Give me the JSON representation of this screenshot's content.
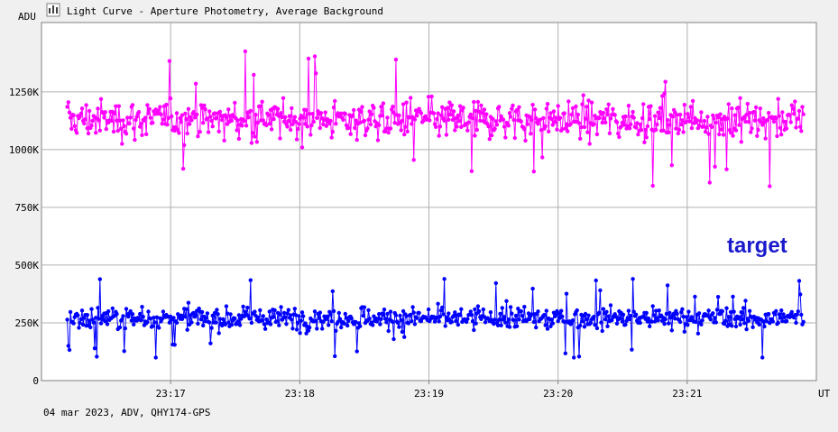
{
  "window": {
    "title": "Light Curve - Aperture Photometry, Average Background",
    "icon": "chart-icon"
  },
  "footer": {
    "text": "04 mar 2023, ADV, QHY174-GPS"
  },
  "chart_data": {
    "type": "scatter",
    "title": "",
    "ylabel": "ADU",
    "xlabel": "UT",
    "xlim": [
      "23:16:00",
      "23:22:00"
    ],
    "ylim": [
      0,
      1550000
    ],
    "grid": true,
    "x_ticks": [
      "23:17",
      "23:18",
      "23:19",
      "23:20",
      "23:21"
    ],
    "y_ticks": [
      {
        "value": 0,
        "label": "0"
      },
      {
        "value": 250000,
        "label": "250K"
      },
      {
        "value": 500000,
        "label": "500K"
      },
      {
        "value": 750000,
        "label": "750K"
      },
      {
        "value": 1000000,
        "label": "1000K"
      },
      {
        "value": 1250000,
        "label": "1250K"
      }
    ],
    "series": [
      {
        "name": "",
        "color": "#ff00ff",
        "mean": 1130000,
        "spread": 75000,
        "min": 820000,
        "max": 1460000
      },
      {
        "name": "target",
        "color": "#0000ff",
        "mean": 270000,
        "spread": 45000,
        "min": 100000,
        "max": 440000
      }
    ],
    "legend": "right, above target series"
  }
}
